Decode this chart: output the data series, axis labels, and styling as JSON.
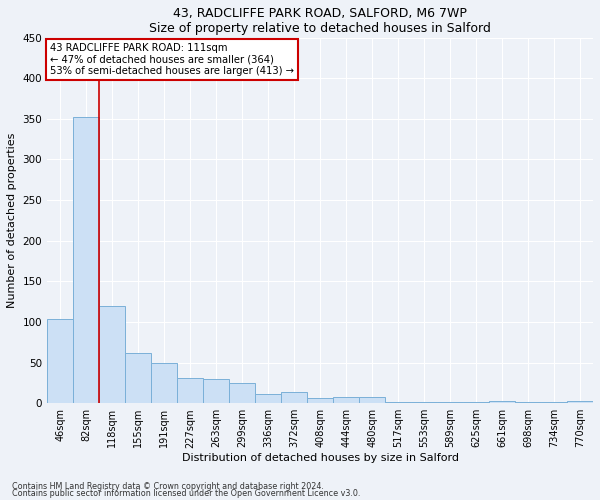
{
  "title1": "43, RADCLIFFE PARK ROAD, SALFORD, M6 7WP",
  "title2": "Size of property relative to detached houses in Salford",
  "xlabel": "Distribution of detached houses by size in Salford",
  "ylabel": "Number of detached properties",
  "bar_color": "#cce0f5",
  "bar_edge_color": "#7ab0d8",
  "categories": [
    "46sqm",
    "82sqm",
    "118sqm",
    "155sqm",
    "191sqm",
    "227sqm",
    "263sqm",
    "299sqm",
    "336sqm",
    "372sqm",
    "408sqm",
    "444sqm",
    "480sqm",
    "517sqm",
    "553sqm",
    "589sqm",
    "625sqm",
    "661sqm",
    "698sqm",
    "734sqm",
    "770sqm"
  ],
  "values": [
    104,
    352,
    120,
    62,
    50,
    31,
    30,
    25,
    11,
    14,
    6,
    7,
    7,
    2,
    2,
    1,
    1,
    3,
    1,
    1,
    3
  ],
  "ylim": [
    0,
    450
  ],
  "yticks": [
    0,
    50,
    100,
    150,
    200,
    250,
    300,
    350,
    400,
    450
  ],
  "vline_x": 1.5,
  "annotation_line1": "43 RADCLIFFE PARK ROAD: 111sqm",
  "annotation_line2": "← 47% of detached houses are smaller (364)",
  "annotation_line3": "53% of semi-detached houses are larger (413) →",
  "annotation_box_color": "#ffffff",
  "annotation_box_edge_color": "#cc0000",
  "vline_color": "#cc0000",
  "background_color": "#eef2f8",
  "grid_color": "#ffffff",
  "footer1": "Contains HM Land Registry data © Crown copyright and database right 2024.",
  "footer2": "Contains public sector information licensed under the Open Government Licence v3.0."
}
